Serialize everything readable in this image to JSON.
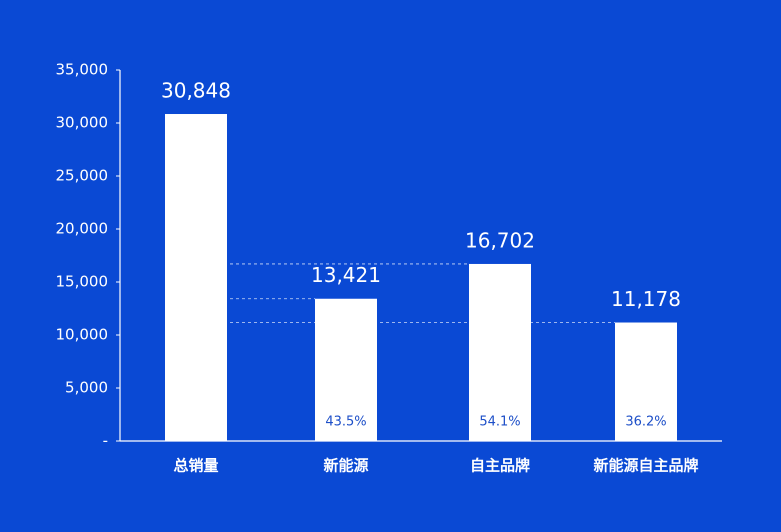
{
  "chart_data": {
    "type": "bar",
    "categories": [
      "总销量",
      "新能源",
      "自主品牌",
      "新能源自主品牌"
    ],
    "values": [
      30848,
      13421,
      16702,
      11178
    ],
    "value_labels": [
      "30,848",
      "13,421",
      "16,702",
      "11,178"
    ],
    "inner_labels": [
      null,
      "43.5%",
      "54.1%",
      "36.2%"
    ],
    "color": "#ffffff",
    "background": "#0a49d4",
    "ylim": [
      0,
      35000
    ],
    "yticks": [
      {
        "value": 0,
        "label": "-"
      },
      {
        "value": 5000,
        "label": "5,000"
      },
      {
        "value": 10000,
        "label": "10,000"
      },
      {
        "value": 15000,
        "label": "15,000"
      },
      {
        "value": 20000,
        "label": "20,000"
      },
      {
        "value": 25000,
        "label": "25,000"
      },
      {
        "value": 30000,
        "label": "30,000"
      },
      {
        "value": 35000,
        "label": "35,000"
      }
    ],
    "grid": false
  }
}
